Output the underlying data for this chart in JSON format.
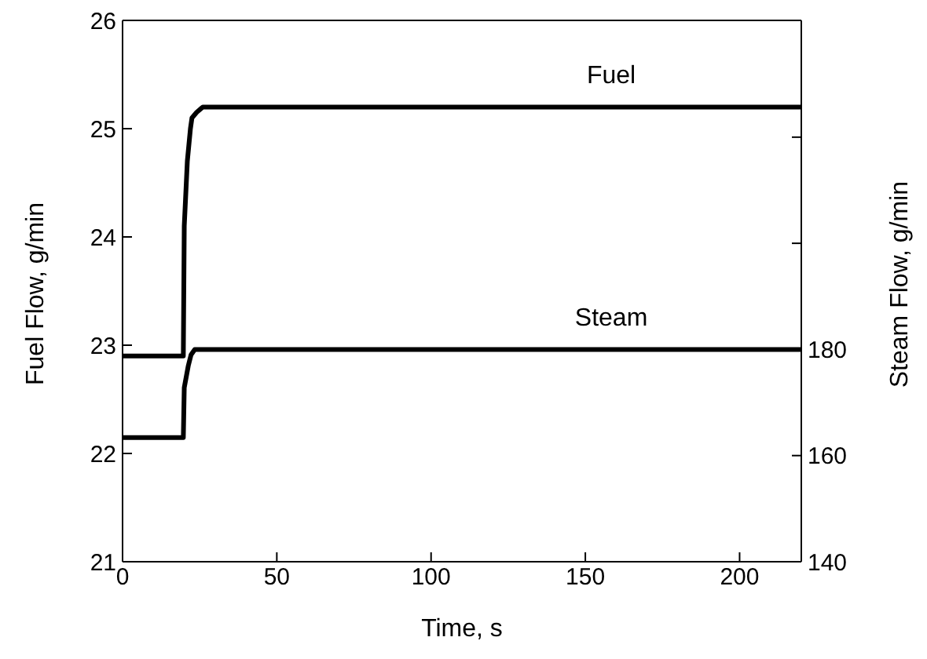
{
  "chart_data": {
    "type": "line",
    "xlabel": "Time, s",
    "ylabel": "Fuel Flow, g/min",
    "y2label": "Steam Flow, g/min",
    "xlim": [
      0,
      220
    ],
    "xticks": [
      0,
      50,
      100,
      150,
      200
    ],
    "ylim": [
      21,
      26
    ],
    "yticks": [
      21,
      22,
      23,
      24,
      25,
      26
    ],
    "y2lim": [
      140,
      242
    ],
    "y2ticks": [
      140,
      160,
      180,
      {
        "value": 200,
        "label": null
      },
      {
        "value": 220,
        "label": null
      }
    ],
    "marker": "none",
    "line_style": "solid",
    "series": [
      {
        "name": "Fuel",
        "color": "#000000",
        "x": [
          0,
          19.7,
          20,
          21,
          22,
          22.5,
          24,
          26,
          220
        ],
        "values": [
          22.9,
          22.9,
          24.1,
          24.7,
          25.0,
          25.1,
          25.15,
          25.2,
          25.2
        ]
      },
      {
        "name": "Steam",
        "color": "#000000",
        "axis": "y2",
        "x": [
          0,
          19.7,
          20,
          21.3,
          22.2,
          23.4,
          220
        ],
        "values": [
          163.4,
          163.4,
          172.8,
          176.9,
          179,
          180,
          180
        ]
      }
    ]
  }
}
